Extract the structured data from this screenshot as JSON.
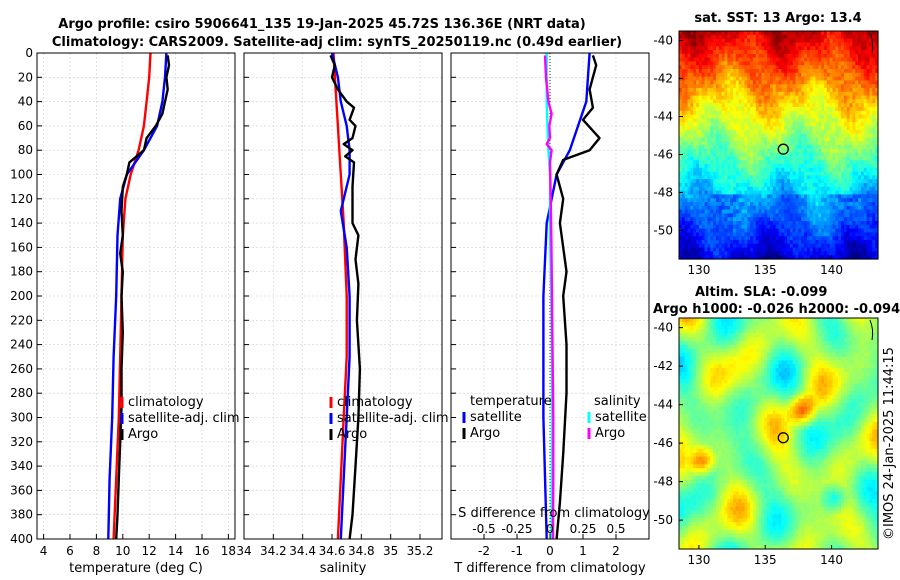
{
  "title": {
    "line1": "Argo profile: csiro 5906641_135 19-Jan-2025 45.72S 136.36E (NRT data)",
    "line2": "Climatology: CARS2009. Satellite-adj clim: synTS_20250119.nc (0.49d earlier)"
  },
  "credit": "©IMOS 24-Jan-2025 11:44:15",
  "colors": {
    "climatology": "#ff0000",
    "satellite": "#0000ff",
    "argo": "#000000",
    "sat_salinity": "#00ffff",
    "argo_salinity": "#ff00ff"
  },
  "chart_data": [
    {
      "id": "temperature",
      "type": "line",
      "xlabel": "temperature (deg C)",
      "ylabel": "",
      "xlim": [
        3.5,
        18.5
      ],
      "ylim": [
        0,
        400
      ],
      "xticks": [
        4,
        6,
        8,
        10,
        12,
        14,
        16,
        18
      ],
      "yticks": [
        0,
        20,
        40,
        60,
        80,
        100,
        120,
        140,
        160,
        180,
        200,
        220,
        240,
        260,
        280,
        300,
        320,
        340,
        360,
        380,
        400
      ],
      "legend": [
        "climatology",
        "satellite-adj. clim",
        "Argo"
      ],
      "series": [
        {
          "name": "climatology",
          "color": "#ff0000",
          "points": [
            [
              12.1,
              0
            ],
            [
              12.0,
              20
            ],
            [
              11.8,
              40
            ],
            [
              11.6,
              60
            ],
            [
              11.2,
              80
            ],
            [
              10.6,
              100
            ],
            [
              10.2,
              120
            ],
            [
              10.0,
              150
            ],
            [
              9.9,
              200
            ],
            [
              9.8,
              250
            ],
            [
              9.7,
              300
            ],
            [
              9.5,
              350
            ],
            [
              9.3,
              400
            ]
          ]
        },
        {
          "name": "satellite-adj. clim",
          "color": "#0000ff",
          "points": [
            [
              13.3,
              0
            ],
            [
              13.2,
              20
            ],
            [
              13.0,
              40
            ],
            [
              12.6,
              60
            ],
            [
              11.6,
              80
            ],
            [
              10.3,
              100
            ],
            [
              9.8,
              120
            ],
            [
              9.6,
              150
            ],
            [
              9.5,
              200
            ],
            [
              9.3,
              250
            ],
            [
              9.2,
              300
            ],
            [
              9.0,
              350
            ],
            [
              8.9,
              400
            ]
          ]
        },
        {
          "name": "Argo",
          "color": "#000000",
          "points": [
            [
              13.4,
              2
            ],
            [
              13.5,
              10
            ],
            [
              13.3,
              20
            ],
            [
              13.4,
              30
            ],
            [
              13.2,
              40
            ],
            [
              13.0,
              50
            ],
            [
              12.5,
              60
            ],
            [
              11.8,
              70
            ],
            [
              11.6,
              80
            ],
            [
              10.5,
              90
            ],
            [
              10.3,
              100
            ],
            [
              10.0,
              110
            ],
            [
              9.9,
              130
            ],
            [
              10.0,
              150
            ],
            [
              9.8,
              165
            ],
            [
              10.0,
              180
            ],
            [
              9.9,
              200
            ],
            [
              10.0,
              230
            ],
            [
              9.9,
              260
            ],
            [
              9.9,
              290
            ],
            [
              9.8,
              320
            ],
            [
              9.7,
              350
            ],
            [
              9.6,
              380
            ],
            [
              9.5,
              400
            ]
          ]
        }
      ]
    },
    {
      "id": "salinity",
      "type": "line",
      "xlabel": "salinity",
      "ylabel": "",
      "xlim": [
        34.0,
        35.35
      ],
      "ylim": [
        0,
        400
      ],
      "xticks": [
        34,
        34.2,
        34.4,
        34.6,
        34.8,
        35,
        35.2
      ],
      "legend": [
        "climatology",
        "satellite-adj. clim",
        "Argo"
      ],
      "series": [
        {
          "name": "climatology",
          "color": "#ff0000",
          "points": [
            [
              34.61,
              0
            ],
            [
              34.62,
              20
            ],
            [
              34.63,
              40
            ],
            [
              34.64,
              60
            ],
            [
              34.65,
              80
            ],
            [
              34.66,
              100
            ],
            [
              34.68,
              140
            ],
            [
              34.7,
              200
            ],
            [
              34.7,
              250
            ],
            [
              34.68,
              300
            ],
            [
              34.66,
              350
            ],
            [
              34.64,
              400
            ]
          ]
        },
        {
          "name": "satellite-adj. clim",
          "color": "#0000ff",
          "points": [
            [
              34.6,
              0
            ],
            [
              34.64,
              20
            ],
            [
              34.66,
              40
            ],
            [
              34.7,
              60
            ],
            [
              34.72,
              80
            ],
            [
              34.72,
              100
            ],
            [
              34.66,
              130
            ],
            [
              34.7,
              160
            ],
            [
              34.72,
              200
            ],
            [
              34.72,
              250
            ],
            [
              34.7,
              300
            ],
            [
              34.68,
              350
            ],
            [
              34.66,
              400
            ]
          ]
        },
        {
          "name": "Argo",
          "color": "#000000",
          "points": [
            [
              34.59,
              2
            ],
            [
              34.62,
              10
            ],
            [
              34.6,
              20
            ],
            [
              34.64,
              30
            ],
            [
              34.7,
              40
            ],
            [
              34.75,
              45
            ],
            [
              34.72,
              55
            ],
            [
              34.76,
              60
            ],
            [
              34.74,
              70
            ],
            [
              34.68,
              75
            ],
            [
              34.74,
              80
            ],
            [
              34.69,
              85
            ],
            [
              34.75,
              90
            ],
            [
              34.74,
              110
            ],
            [
              34.74,
              140
            ],
            [
              34.78,
              150
            ],
            [
              34.76,
              170
            ],
            [
              34.78,
              190
            ],
            [
              34.77,
              220
            ],
            [
              34.79,
              260
            ],
            [
              34.78,
              300
            ],
            [
              34.76,
              340
            ],
            [
              34.74,
              380
            ],
            [
              34.72,
              400
            ]
          ]
        }
      ]
    },
    {
      "id": "difference",
      "type": "line",
      "xlabel": "T difference from climatology",
      "ylabel": "",
      "xlim": [
        -3,
        3
      ],
      "ylim": [
        0,
        400
      ],
      "xticks": [
        -2,
        -1,
        0,
        1,
        2
      ],
      "xticklabels": [
        "-2",
        "-1",
        "0",
        "1",
        "2"
      ],
      "secondary_xlabel": "S difference from climatology",
      "secondary_xlim": [
        -0.75,
        0.75
      ],
      "secondary_xticks": [
        -0.5,
        -0.25,
        0,
        0.25,
        0.5
      ],
      "secondary_xticklabels": [
        "-0.5",
        "-0.25",
        "0",
        "0.25",
        "0.5"
      ],
      "legend_t_title": "temperature",
      "legend_s_title": "salinity",
      "legend_t": [
        "satellite",
        "Argo"
      ],
      "legend_s": [
        "satellite",
        "Argo"
      ],
      "series": [
        {
          "name": "T satellite",
          "color": "#0000ff",
          "points": [
            [
              1.2,
              0
            ],
            [
              1.1,
              40
            ],
            [
              0.6,
              80
            ],
            [
              0.2,
              100
            ],
            [
              -0.1,
              140
            ],
            [
              -0.2,
              200
            ],
            [
              -0.2,
              300
            ],
            [
              -0.1,
              400
            ]
          ]
        },
        {
          "name": "T Argo",
          "color": "#000000",
          "points": [
            [
              1.3,
              2
            ],
            [
              1.4,
              10
            ],
            [
              1.2,
              30
            ],
            [
              1.3,
              45
            ],
            [
              1.0,
              55
            ],
            [
              1.5,
              70
            ],
            [
              1.2,
              80
            ],
            [
              0.4,
              88
            ],
            [
              0.2,
              100
            ],
            [
              0.4,
              120
            ],
            [
              0.3,
              140
            ],
            [
              0.4,
              160
            ],
            [
              0.5,
              180
            ],
            [
              0.4,
              200
            ],
            [
              0.5,
              240
            ],
            [
              0.5,
              280
            ],
            [
              0.4,
              330
            ],
            [
              0.3,
              370
            ],
            [
              0.2,
              400
            ]
          ]
        },
        {
          "name": "S satellite",
          "color": "#00ffff",
          "points": [
            [
              -0.1,
              0
            ],
            [
              -0.1,
              20
            ],
            [
              -0.1,
              40
            ],
            [
              -0.08,
              60
            ],
            [
              -0.05,
              80
            ],
            [
              0.0,
              100
            ],
            [
              0.0,
              150
            ],
            [
              0.04,
              200
            ],
            [
              0.06,
              250
            ],
            [
              0.07,
              300
            ],
            [
              0.06,
              350
            ],
            [
              0.05,
              400
            ]
          ]
        },
        {
          "name": "S Argo",
          "color": "#ff00ff",
          "points": [
            [
              -0.15,
              2
            ],
            [
              -0.12,
              20
            ],
            [
              -0.05,
              40
            ],
            [
              0.05,
              50
            ],
            [
              -0.02,
              60
            ],
            [
              0.0,
              70
            ],
            [
              -0.1,
              75
            ],
            [
              0.05,
              80
            ],
            [
              0.0,
              90
            ],
            [
              0.02,
              120
            ],
            [
              0.04,
              150
            ],
            [
              0.06,
              200
            ],
            [
              0.08,
              250
            ],
            [
              0.1,
              300
            ],
            [
              0.1,
              350
            ],
            [
              0.09,
              400
            ]
          ]
        }
      ]
    },
    {
      "id": "sst_map",
      "type": "heatmap",
      "title": "sat. SST: 13 Argo: 13.4",
      "xlim": [
        128.5,
        143.5
      ],
      "ylim": [
        -51.5,
        -39.5
      ],
      "xticks": [
        130,
        135,
        140
      ],
      "yticks": [
        -50,
        -48,
        -46,
        -44,
        -42,
        -40
      ],
      "marker": {
        "lon": 136.36,
        "lat": -45.72
      }
    },
    {
      "id": "sla_map",
      "type": "heatmap",
      "title": "Altim. SLA: -0.099",
      "subtitle": "Argo h1000: -0.026 h2000: -0.094",
      "xlim": [
        128.5,
        143.5
      ],
      "ylim": [
        -51.5,
        -39.5
      ],
      "xticks": [
        130,
        135,
        140
      ],
      "yticks": [
        -50,
        -48,
        -46,
        -44,
        -42,
        -40
      ],
      "marker": {
        "lon": 136.36,
        "lat": -45.72
      }
    }
  ]
}
